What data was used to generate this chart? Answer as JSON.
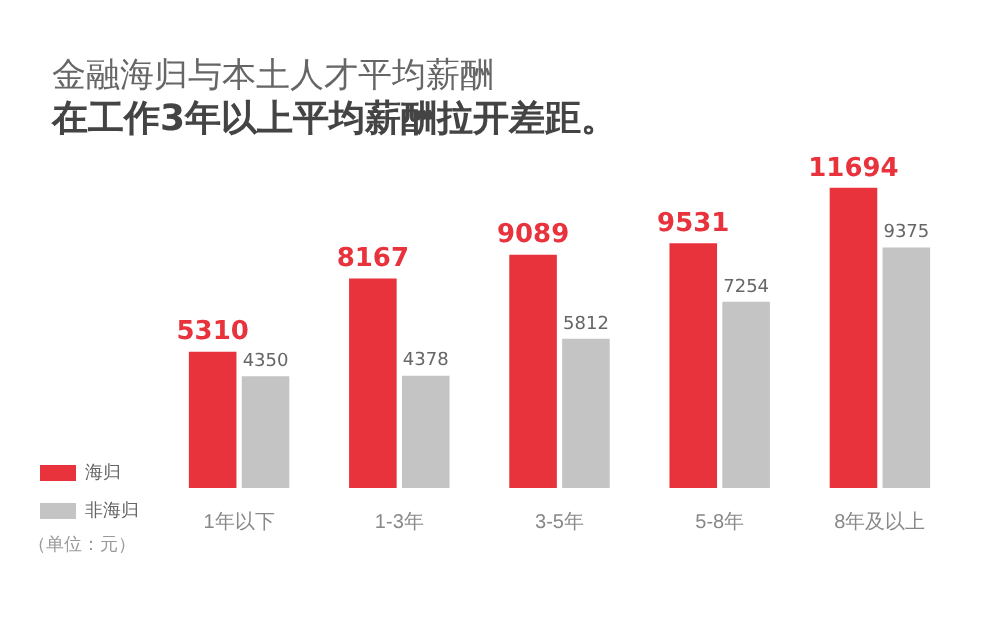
{
  "chart_data": {
    "type": "bar",
    "title": "金融海归与本土人才平均薪酬",
    "subtitle": "在工作3年以上平均薪酬拉开差距。",
    "categories": [
      "1年以下",
      "1-3年",
      "3-5年",
      "5-8年",
      "8年及以上"
    ],
    "series": [
      {
        "name": "海归",
        "color": "#e8323c",
        "values": [
          5310,
          8167,
          9089,
          9531,
          11694
        ]
      },
      {
        "name": "非海归",
        "color": "#c4c4c4",
        "values": [
          4350,
          4378,
          5812,
          7254,
          9375
        ]
      }
    ],
    "data_labels": true,
    "legend": "bottom left",
    "annotations": [
      "（单位：元）"
    ]
  }
}
